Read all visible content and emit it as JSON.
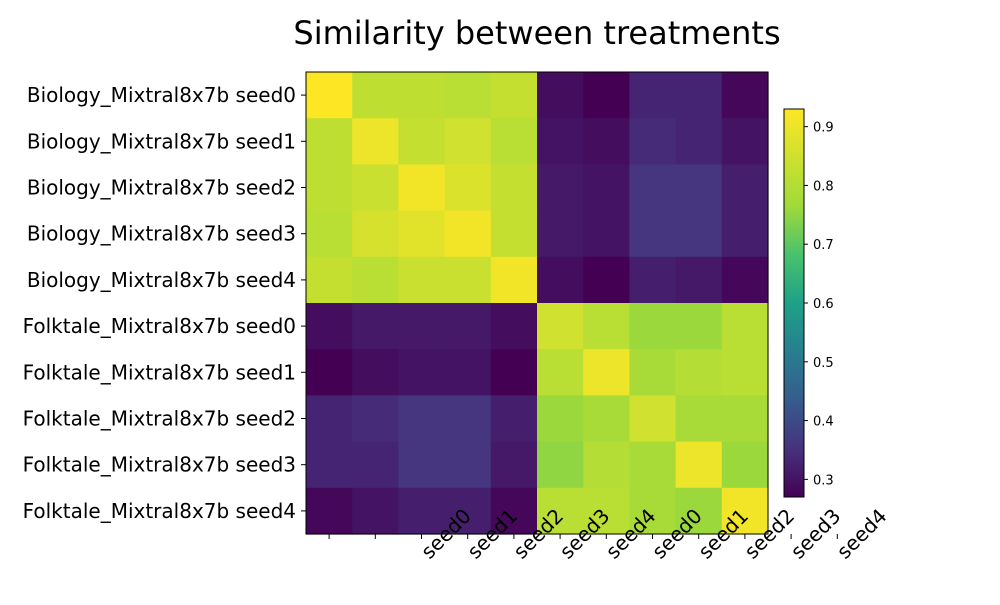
{
  "chart_data": {
    "type": "heatmap",
    "title": "Similarity between treatments",
    "row_labels": [
      "Biology_Mixtral8x7b seed0",
      "Biology_Mixtral8x7b seed1",
      "Biology_Mixtral8x7b seed2",
      "Biology_Mixtral8x7b seed3",
      "Biology_Mixtral8x7b seed4",
      "Folktale_Mixtral8x7b seed0",
      "Folktale_Mixtral8x7b seed1",
      "Folktale_Mixtral8x7b seed2",
      "Folktale_Mixtral8x7b seed3",
      "Folktale_Mixtral8x7b seed4"
    ],
    "x_tick_labels": [
      "",
      "",
      "seed0",
      "seed1",
      "seed2",
      "seed3",
      "seed4",
      "seed0",
      "seed1",
      "seed2",
      "seed3",
      "seed4"
    ],
    "values": [
      [
        0.93,
        0.82,
        0.82,
        0.81,
        0.83,
        0.29,
        0.27,
        0.33,
        0.33,
        0.28
      ],
      [
        0.82,
        0.9,
        0.83,
        0.85,
        0.81,
        0.3,
        0.29,
        0.34,
        0.33,
        0.3
      ],
      [
        0.82,
        0.84,
        0.91,
        0.87,
        0.83,
        0.31,
        0.3,
        0.36,
        0.36,
        0.32
      ],
      [
        0.81,
        0.86,
        0.88,
        0.91,
        0.83,
        0.31,
        0.3,
        0.36,
        0.36,
        0.32
      ],
      [
        0.83,
        0.81,
        0.84,
        0.84,
        0.91,
        0.29,
        0.27,
        0.32,
        0.31,
        0.28
      ],
      [
        0.29,
        0.31,
        0.31,
        0.31,
        0.29,
        0.85,
        0.81,
        0.76,
        0.76,
        0.81
      ],
      [
        0.27,
        0.29,
        0.3,
        0.3,
        0.27,
        0.81,
        0.9,
        0.78,
        0.8,
        0.81
      ],
      [
        0.33,
        0.34,
        0.36,
        0.36,
        0.32,
        0.76,
        0.78,
        0.85,
        0.78,
        0.78
      ],
      [
        0.33,
        0.33,
        0.36,
        0.36,
        0.31,
        0.75,
        0.8,
        0.78,
        0.9,
        0.76
      ],
      [
        0.28,
        0.3,
        0.32,
        0.32,
        0.28,
        0.81,
        0.81,
        0.78,
        0.76,
        0.91
      ]
    ],
    "colormap": "viridis",
    "colorbar": {
      "vmin": 0.27,
      "vmax": 0.93,
      "ticks": [
        0.3,
        0.4,
        0.5,
        0.6,
        0.7,
        0.8,
        0.9
      ],
      "tick_labels": [
        "0.3",
        "0.4",
        "0.5",
        "0.6",
        "0.7",
        "0.8",
        "0.9"
      ]
    }
  }
}
